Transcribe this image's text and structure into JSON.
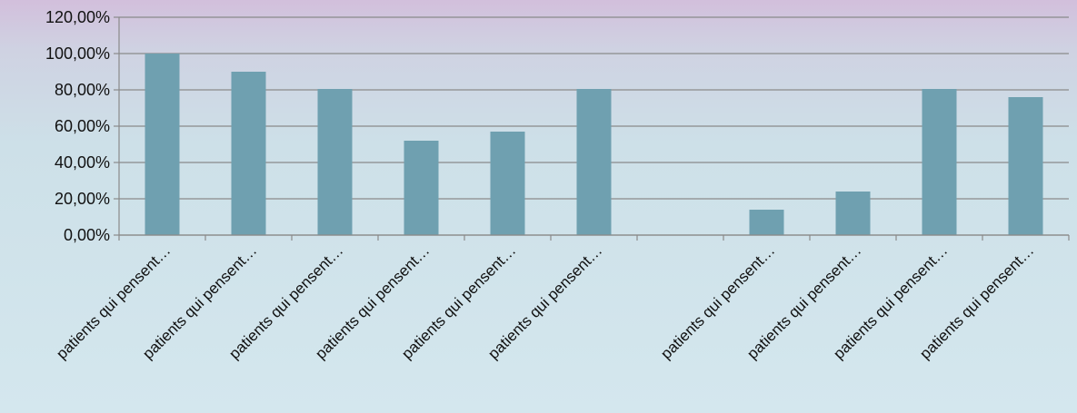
{
  "chart_data": {
    "type": "bar",
    "title": "",
    "xlabel": "",
    "ylabel": "",
    "categories": [
      "patients qui pensent…",
      "patients qui pensent…",
      "patients qui pensent…",
      "patients qui pensent…",
      "patients qui pensent…",
      "patients qui pensent…",
      "",
      "patients qui pensent…",
      "patients qui pensent…",
      "patients qui pensent…",
      "patients qui pensent…"
    ],
    "values": [
      100,
      90,
      80.5,
      52,
      57,
      80.5,
      0,
      14,
      24,
      80.5,
      76
    ],
    "ylim": [
      0,
      120
    ],
    "yticks": [
      0,
      20,
      40,
      60,
      80,
      100,
      120
    ],
    "ytick_labels": [
      "0,00%",
      "20,00%",
      "40,00%",
      "60,00%",
      "80,00%",
      "100,00%",
      "120,00%"
    ],
    "grid": true,
    "legend": "none",
    "bar_color": "#6fa0b0",
    "grid_color": "#8a8a8a"
  }
}
